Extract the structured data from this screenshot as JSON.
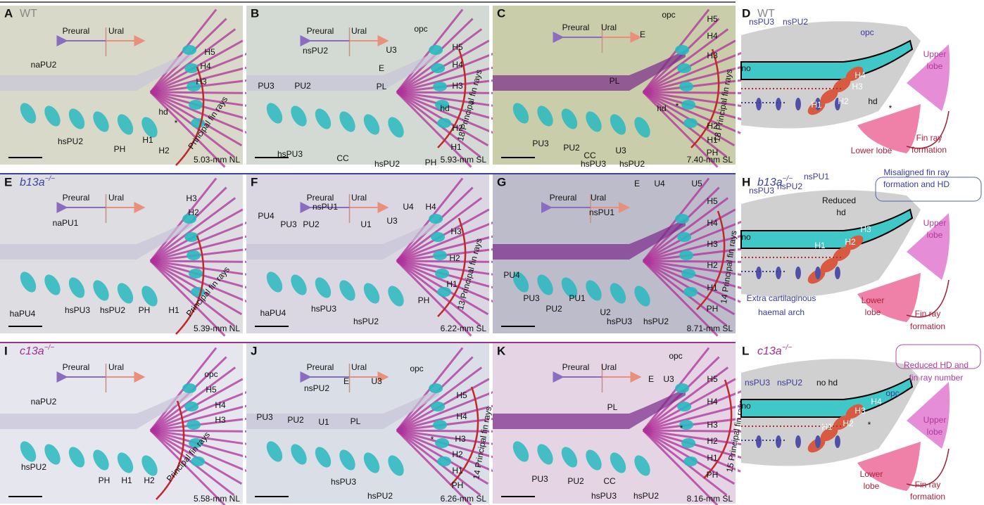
{
  "panels": [
    {
      "letter": "A",
      "genotype": "WT",
      "labels": [
        "Preural",
        "Ural",
        "naPU2",
        "H5",
        "H4",
        "H3",
        "hd",
        "*",
        "hsPU2",
        "PH",
        "H1",
        "H2"
      ],
      "fin_rays": "Principal fin rays",
      "stage": "5.03-mm NL"
    },
    {
      "letter": "B",
      "labels": [
        "Preural",
        "Ural",
        "opc",
        "nsPU2",
        "U3",
        "E",
        "H5",
        "H4",
        "PL",
        "H3",
        "PU3",
        "PU2",
        "hd",
        "*",
        "H2",
        "H1",
        "CC",
        "hsPU3",
        "hsPU2",
        "PH"
      ],
      "fin_rays": "18 Principal fin rays",
      "stage": "5.93-mm SL"
    },
    {
      "letter": "C",
      "labels": [
        "Preural",
        "Ural",
        "opc",
        "E",
        "H5",
        "H4",
        "H3",
        "PL",
        "hd",
        "*",
        "H2",
        "H1",
        "PU3",
        "PU2",
        "CC",
        "U3",
        "PH",
        "hsPU3",
        "hsPU2"
      ],
      "fin_rays": "18 Principal fin rays",
      "stage": "7.40-mm SL"
    },
    {
      "letter": "D",
      "genotype": "WT",
      "labels": [
        "nsPU3",
        "nsPU2",
        "opc",
        "no",
        "H4",
        "H3",
        "H2",
        "H1",
        "hd",
        "*",
        "Upper",
        "lobe",
        "Lower lobe",
        "Fin ray",
        "formation"
      ]
    },
    {
      "letter": "E",
      "genotype": "b13a",
      "genotype_sup": "−/−",
      "labels": [
        "Preural",
        "Ural",
        "naPU1",
        "H3",
        "H2",
        "hsPU3",
        "hsPU2",
        "PH",
        "H1",
        "haPU4"
      ],
      "fin_rays": "Principal fin rays",
      "stage": "5.39-mm NL"
    },
    {
      "letter": "F",
      "labels": [
        "Preural",
        "Ural",
        "nsPU1",
        "U4",
        "H4",
        "PU4",
        "PU3",
        "PU2",
        "U1",
        "U3",
        "H3",
        "H2",
        "H1",
        "PH",
        "haPU4",
        "hsPU3",
        "hsPU2"
      ],
      "fin_rays": "13 Principal fin rays",
      "stage": "6.22-mm SL"
    },
    {
      "letter": "G",
      "labels": [
        "Preural",
        "Ural",
        "E",
        "U4",
        "U5",
        "nsPU1",
        "H5",
        "H4",
        "H3",
        "H2",
        "H1",
        "PH",
        "PU4",
        "PU3",
        "PU2",
        "PU1",
        "U2",
        "hsPU3",
        "hsPU2"
      ],
      "fin_rays": "14 Principal fin rays",
      "stage": "8.71-mm SL"
    },
    {
      "letter": "H",
      "genotype": "b13a",
      "genotype_sup": "−/−",
      "labels": [
        "nsPU3",
        "nsPU2",
        "nsPU1",
        "Misaligned fin ray",
        "formation and HD",
        "Reduced",
        "hd",
        "no",
        "H3",
        "H2",
        "H1",
        "Upper",
        "lobe",
        "Extra cartilaginous",
        "haemal arch",
        "Lower",
        "lobe",
        "Fin ray",
        "formation"
      ]
    },
    {
      "letter": "I",
      "genotype": "c13a",
      "genotype_sup": "−/−",
      "labels": [
        "Preural",
        "Ural",
        "naPU2",
        "opc",
        "H5",
        "H4",
        "H3",
        "hsPU2",
        "PH",
        "H1",
        "H2"
      ],
      "fin_rays": "Principal fin rays",
      "stage": "5.58-mm NL"
    },
    {
      "letter": "J",
      "labels": [
        "Preural",
        "Ural",
        "nsPU2",
        "E",
        "U3",
        "opc",
        "PU3",
        "PU2",
        "U1",
        "PL",
        "H5",
        "H4",
        "H3",
        "*",
        "H2",
        "H1",
        "PH",
        "hsPU3",
        "hsPU2"
      ],
      "fin_rays": "14 Principal fin rays",
      "stage": "6.26-mm SL"
    },
    {
      "letter": "K",
      "labels": [
        "Preural",
        "Ural",
        "opc",
        "E",
        "U3",
        "PL",
        "H5",
        "H4",
        "H3",
        "*",
        "H2",
        "H1",
        "PH",
        "PU3",
        "PU2",
        "CC",
        "hsPU3",
        "hsPU2"
      ],
      "fin_rays": "15 Principal fin rays",
      "stage": "8.16-mm SL"
    },
    {
      "letter": "L",
      "genotype": "c13a",
      "genotype_sup": "−/−",
      "labels": [
        "Reduced HD and",
        "fin ray number",
        "nsPU3",
        "nsPU2",
        "no hd",
        "opc",
        "no",
        "H4",
        "H3",
        "H2",
        "H1",
        "*",
        "Upper",
        "lobe",
        "Lower",
        "lobe",
        "Fin ray",
        "formation"
      ]
    }
  ]
}
